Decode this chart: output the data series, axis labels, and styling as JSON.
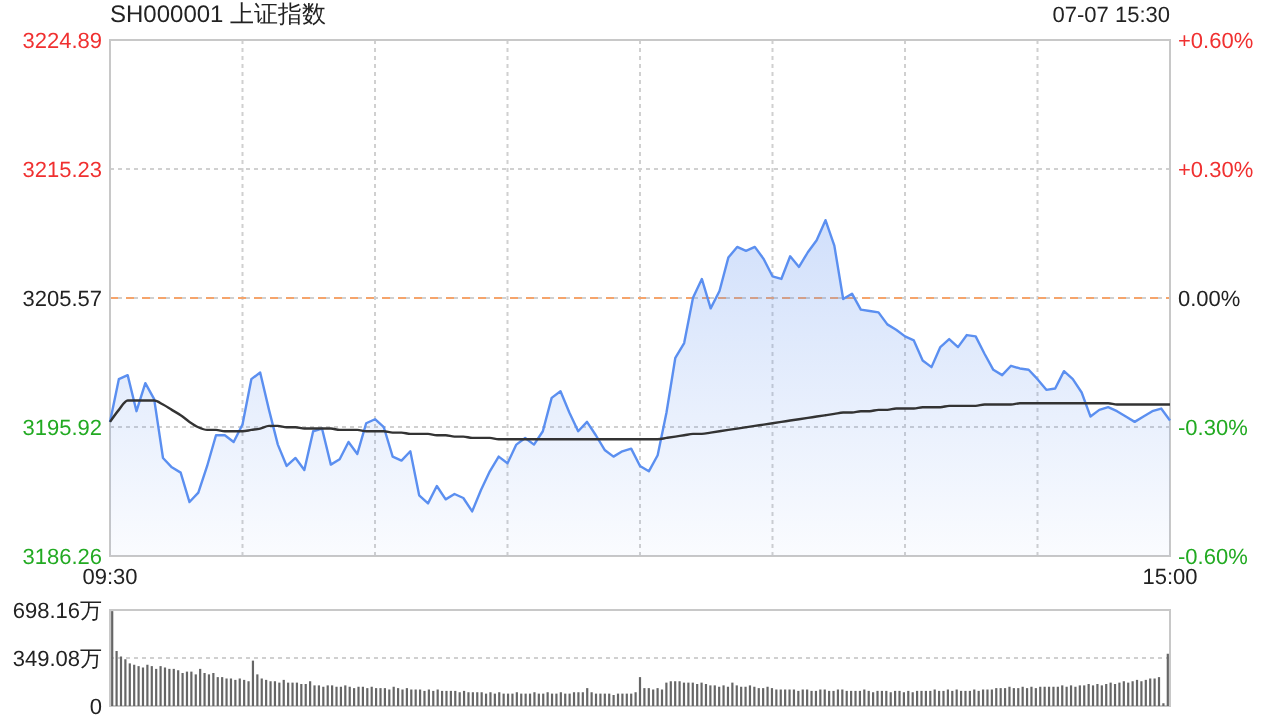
{
  "chart_data": [
    {
      "type": "area",
      "title": "SH000001 上证指数",
      "subtitle": "07-07 15:30",
      "categories": [
        "09:30",
        null,
        null,
        null,
        null,
        null,
        null,
        null,
        null,
        null,
        null,
        null,
        null,
        null,
        null,
        null,
        null,
        null,
        null,
        null,
        null,
        null,
        null,
        null,
        null,
        null,
        null,
        null,
        null,
        null,
        null,
        null,
        null,
        null,
        null,
        null,
        null,
        null,
        null,
        null,
        null,
        null,
        null,
        null,
        null,
        null,
        null,
        null,
        null,
        null,
        null,
        null,
        null,
        null,
        null,
        null,
        null,
        null,
        null,
        null,
        null,
        null,
        null,
        null,
        null,
        null,
        null,
        null,
        null,
        null,
        null,
        null,
        null,
        null,
        null,
        null,
        null,
        null,
        null,
        null,
        null,
        null,
        null,
        null,
        null,
        null,
        null,
        null,
        null,
        null,
        null,
        null,
        null,
        null,
        null,
        null,
        null,
        null,
        null,
        null,
        null,
        null,
        null,
        null,
        null,
        null,
        null,
        null,
        null,
        null,
        null,
        null,
        null,
        null,
        null,
        null,
        null,
        null,
        null,
        null,
        "15:00"
      ],
      "ylim": [
        3186.26,
        3224.89
      ],
      "yticks": [
        3186.26,
        3195.92,
        3205.57,
        3215.23,
        3224.89
      ],
      "y2lim": [
        -0.6,
        0.6
      ],
      "y2ticks": [
        {
          "value": -0.6,
          "label": "-0.60%"
        },
        {
          "value": -0.3,
          "label": "-0.30%"
        },
        {
          "value": 0,
          "label": "0.00%"
        },
        {
          "value": 0.3,
          "label": "+0.30%"
        },
        {
          "value": 0.6,
          "label": "+0.60%"
        }
      ],
      "grid": true,
      "ref_lines": [
        {
          "axis": "y",
          "value": 3205.57,
          "color": "#f5a46b",
          "line_style": "dashed"
        }
      ],
      "series": [
        {
          "type": "area",
          "color": "#5b8ff0",
          "values": [
            3196.3,
            3199.5,
            3199.8,
            3197.1,
            3199.2,
            3198.0,
            3193.6,
            3192.9,
            3192.5,
            3190.3,
            3191.0,
            3193.0,
            3195.3,
            3195.3,
            3194.8,
            3196.1,
            3199.5,
            3200.0,
            3197.2,
            3194.6,
            3193.0,
            3193.6,
            3192.7,
            3195.6,
            3195.8,
            3193.1,
            3193.5,
            3194.8,
            3193.9,
            3196.2,
            3196.5,
            3195.9,
            3193.7,
            3193.4,
            3194.1,
            3190.8,
            3190.2,
            3191.5,
            3190.5,
            3190.9,
            3190.6,
            3189.6,
            3191.2,
            3192.6,
            3193.7,
            3193.2,
            3194.6,
            3195.1,
            3194.6,
            3195.6,
            3198.1,
            3198.6,
            3197.0,
            3195.6,
            3196.3,
            3195.3,
            3194.2,
            3193.7,
            3194.1,
            3194.3,
            3193.0,
            3192.6,
            3193.8,
            3197.0,
            3201.1,
            3202.2,
            3205.6,
            3207.0,
            3204.8,
            3206.1,
            3208.6,
            3209.4,
            3209.1,
            3209.4,
            3208.5,
            3207.2,
            3207.0,
            3208.7,
            3207.9,
            3209.0,
            3209.9,
            3211.4,
            3209.5,
            3205.5,
            3205.9,
            3204.7,
            3204.6,
            3204.5,
            3203.6,
            3203.2,
            3202.7,
            3202.4,
            3200.9,
            3200.4,
            3201.9,
            3202.5,
            3201.9,
            3202.8,
            3202.7,
            3201.4,
            3200.2,
            3199.8,
            3200.5,
            3200.3,
            3200.2,
            3199.5,
            3198.7,
            3198.8,
            3200.1,
            3199.5,
            3198.5,
            3196.7,
            3197.2,
            3197.4,
            3197.1,
            3196.7,
            3196.3,
            3196.7,
            3197.1,
            3197.3,
            3196.4
          ]
        },
        {
          "type": "line",
          "color": "#333333",
          "values": [
            3196.3,
            3197.2,
            3197.9,
            3197.9,
            3197.9,
            3197.9,
            3197.6,
            3197.2,
            3196.8,
            3196.3,
            3195.9,
            3195.7,
            3195.7,
            3195.6,
            3195.6,
            3195.6,
            3195.7,
            3195.8,
            3196.0,
            3196.0,
            3195.9,
            3195.9,
            3195.8,
            3195.8,
            3195.8,
            3195.8,
            3195.7,
            3195.7,
            3195.7,
            3195.6,
            3195.6,
            3195.6,
            3195.5,
            3195.5,
            3195.4,
            3195.4,
            3195.4,
            3195.3,
            3195.3,
            3195.2,
            3195.2,
            3195.1,
            3195.1,
            3195.1,
            3195.0,
            3195.0,
            3195.0,
            3195.0,
            3195.0,
            3195.0,
            3195.0,
            3195.0,
            3195.0,
            3195.0,
            3195.0,
            3195.0,
            3195.0,
            3195.0,
            3195.0,
            3195.0,
            3195.0,
            3195.0,
            3195.0,
            3195.1,
            3195.2,
            3195.3,
            3195.4,
            3195.4,
            3195.5,
            3195.6,
            3195.7,
            3195.8,
            3195.9,
            3196.0,
            3196.1,
            3196.2,
            3196.3,
            3196.4,
            3196.5,
            3196.6,
            3196.7,
            3196.8,
            3196.9,
            3197.0,
            3197.0,
            3197.1,
            3197.1,
            3197.2,
            3197.2,
            3197.3,
            3197.3,
            3197.3,
            3197.4,
            3197.4,
            3197.4,
            3197.5,
            3197.5,
            3197.5,
            3197.5,
            3197.6,
            3197.6,
            3197.6,
            3197.6,
            3197.7,
            3197.7,
            3197.7,
            3197.7,
            3197.7,
            3197.7,
            3197.7,
            3197.7,
            3197.7,
            3197.7,
            3197.7,
            3197.6,
            3197.6,
            3197.6,
            3197.6,
            3197.6,
            3197.6,
            3197.6
          ]
        }
      ]
    },
    {
      "type": "bar",
      "color": "#666666",
      "tick_labels": "y",
      "grid": "y",
      "ylim": [
        0,
        698.16
      ],
      "yticks": [
        0,
        {
          "value": 349.08,
          "label": "349.08万"
        },
        {
          "value": 698.16,
          "label": "698.16万"
        }
      ],
      "categories": [
        null,
        null,
        null,
        null,
        null,
        null,
        null,
        null,
        null,
        null,
        null,
        null,
        null,
        null,
        null,
        null,
        null,
        null,
        null,
        null,
        null,
        null,
        null,
        null,
        null,
        null,
        null,
        null,
        null,
        null,
        null,
        null,
        null,
        null,
        null,
        null,
        null,
        null,
        null,
        null,
        null,
        null,
        null,
        null,
        null,
        null,
        null,
        null,
        null,
        null,
        null,
        null,
        null,
        null,
        null,
        null,
        null,
        null,
        null,
        null,
        null,
        null,
        null,
        null,
        null,
        null,
        null,
        null,
        null,
        null,
        null,
        null,
        null,
        null,
        null,
        null,
        null,
        null,
        null,
        null,
        null,
        null,
        null,
        null,
        null,
        null,
        null,
        null,
        null,
        null,
        null,
        null,
        null,
        null,
        null,
        null,
        null,
        null,
        null,
        null,
        null,
        null,
        null,
        null,
        null,
        null,
        null,
        null,
        null,
        null,
        null,
        null,
        null,
        null,
        null,
        null,
        null,
        null,
        null,
        null,
        null,
        null,
        null,
        null,
        null,
        null,
        null,
        null,
        null,
        null,
        null,
        null,
        null,
        null,
        null,
        null,
        null,
        null,
        null,
        null,
        null,
        null,
        null,
        null,
        null,
        null,
        null,
        null,
        null,
        null,
        null,
        null,
        null,
        null,
        null,
        null,
        null,
        null,
        null,
        null,
        null,
        null,
        null,
        null,
        null,
        null,
        null,
        null,
        null,
        null,
        null,
        null,
        null,
        null,
        null,
        null,
        null,
        null,
        null,
        null,
        null,
        null,
        null,
        null,
        null,
        null,
        null,
        null,
        null,
        null,
        null,
        null,
        null,
        null,
        null,
        null,
        null,
        null,
        null,
        null,
        null,
        null,
        null,
        null,
        null,
        null,
        null,
        null,
        null,
        null,
        null,
        null,
        null,
        null,
        null,
        null,
        null,
        null,
        null,
        null,
        null,
        null,
        null,
        null,
        null,
        null,
        null,
        null,
        null,
        null,
        null,
        null,
        null,
        null,
        null,
        null,
        null,
        null,
        null,
        null,
        null
      ],
      "values": [
        690,
        400,
        360,
        340,
        310,
        300,
        290,
        280,
        300,
        290,
        270,
        290,
        280,
        270,
        270,
        260,
        240,
        250,
        250,
        230,
        270,
        240,
        230,
        240,
        210,
        210,
        200,
        200,
        190,
        200,
        190,
        180,
        330,
        230,
        200,
        190,
        180,
        180,
        170,
        190,
        170,
        170,
        170,
        160,
        160,
        180,
        150,
        150,
        140,
        150,
        150,
        140,
        140,
        150,
        140,
        130,
        140,
        140,
        130,
        140,
        130,
        130,
        130,
        120,
        140,
        130,
        120,
        130,
        120,
        120,
        120,
        110,
        120,
        110,
        120,
        110,
        110,
        110,
        110,
        100,
        110,
        100,
        100,
        100,
        100,
        90,
        100,
        90,
        100,
        90,
        90,
        90,
        100,
        90,
        90,
        90,
        100,
        90,
        90,
        100,
        90,
        90,
        100,
        90,
        90,
        100,
        100,
        100,
        130,
        100,
        90,
        90,
        90,
        90,
        80,
        90,
        90,
        90,
        90,
        100,
        210,
        130,
        130,
        120,
        130,
        120,
        170,
        180,
        180,
        180,
        170,
        170,
        170,
        160,
        170,
        160,
        150,
        150,
        140,
        150,
        140,
        170,
        150,
        140,
        140,
        150,
        140,
        130,
        130,
        140,
        130,
        120,
        120,
        120,
        120,
        120,
        110,
        120,
        120,
        110,
        110,
        120,
        120,
        110,
        110,
        120,
        120,
        110,
        110,
        110,
        110,
        120,
        110,
        100,
        110,
        110,
        110,
        100,
        110,
        110,
        100,
        110,
        100,
        110,
        110,
        110,
        110,
        120,
        110,
        110,
        120,
        110,
        120,
        110,
        110,
        110,
        120,
        110,
        120,
        120,
        120,
        130,
        130,
        130,
        140,
        130,
        130,
        140,
        130,
        140,
        130,
        140,
        140,
        140,
        140,
        140,
        150,
        140,
        150,
        140,
        150,
        150,
        160,
        150,
        160,
        150,
        160,
        170,
        160,
        170,
        180,
        170,
        180,
        190,
        180,
        190,
        200,
        200,
        210,
        20,
        380
      ]
    }
  ]
}
